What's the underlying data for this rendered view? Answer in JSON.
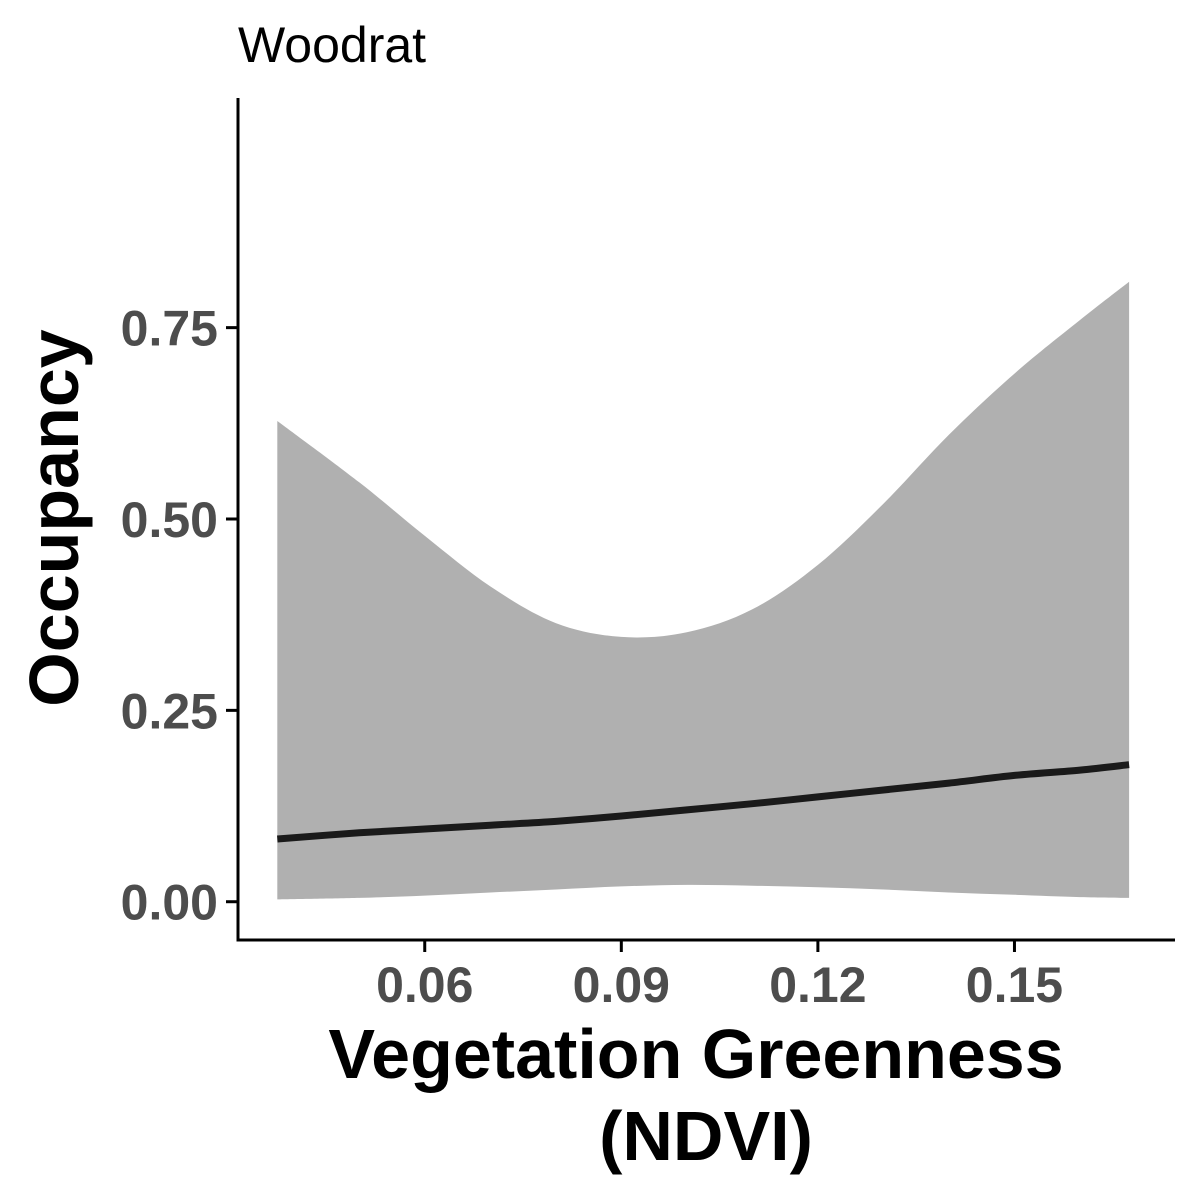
{
  "chart_data": {
    "type": "line",
    "title": "Woodrat",
    "xlabel_lines": [
      "Vegetation Greenness",
      "(NDVI)"
    ],
    "ylabel": "Occupancy",
    "xlim": [
      0.0315,
      0.1745
    ],
    "ylim": [
      -0.05,
      1.05
    ],
    "x_ticks": [
      0.06,
      0.09,
      0.12,
      0.15
    ],
    "x_tick_labels": [
      "0.06",
      "0.09",
      "0.12",
      "0.15"
    ],
    "y_ticks": [
      0.0,
      0.25,
      0.5,
      0.75
    ],
    "y_tick_labels": [
      "0.00",
      "0.25",
      "0.50",
      "0.75"
    ],
    "grid": false,
    "legend": "none",
    "colors": {
      "line": "#1a1a1a",
      "ribbon": "#b0b0b0",
      "axis": "#000000",
      "tick_label": "#4d4d4d"
    },
    "series": [
      {
        "x": [
          0.0375,
          0.05,
          0.06,
          0.07,
          0.08,
          0.09,
          0.1,
          0.11,
          0.12,
          0.13,
          0.14,
          0.15,
          0.16,
          0.1675
        ],
        "y": [
          0.082,
          0.09,
          0.095,
          0.1,
          0.105,
          0.112,
          0.12,
          0.128,
          0.137,
          0.146,
          0.155,
          0.165,
          0.172,
          0.179
        ],
        "lower": [
          0.003,
          0.005,
          0.008,
          0.012,
          0.016,
          0.02,
          0.022,
          0.021,
          0.019,
          0.016,
          0.012,
          0.009,
          0.006,
          0.005
        ],
        "upper": [
          0.628,
          0.548,
          0.478,
          0.412,
          0.364,
          0.346,
          0.352,
          0.382,
          0.44,
          0.52,
          0.61,
          0.69,
          0.76,
          0.81
        ]
      }
    ]
  }
}
